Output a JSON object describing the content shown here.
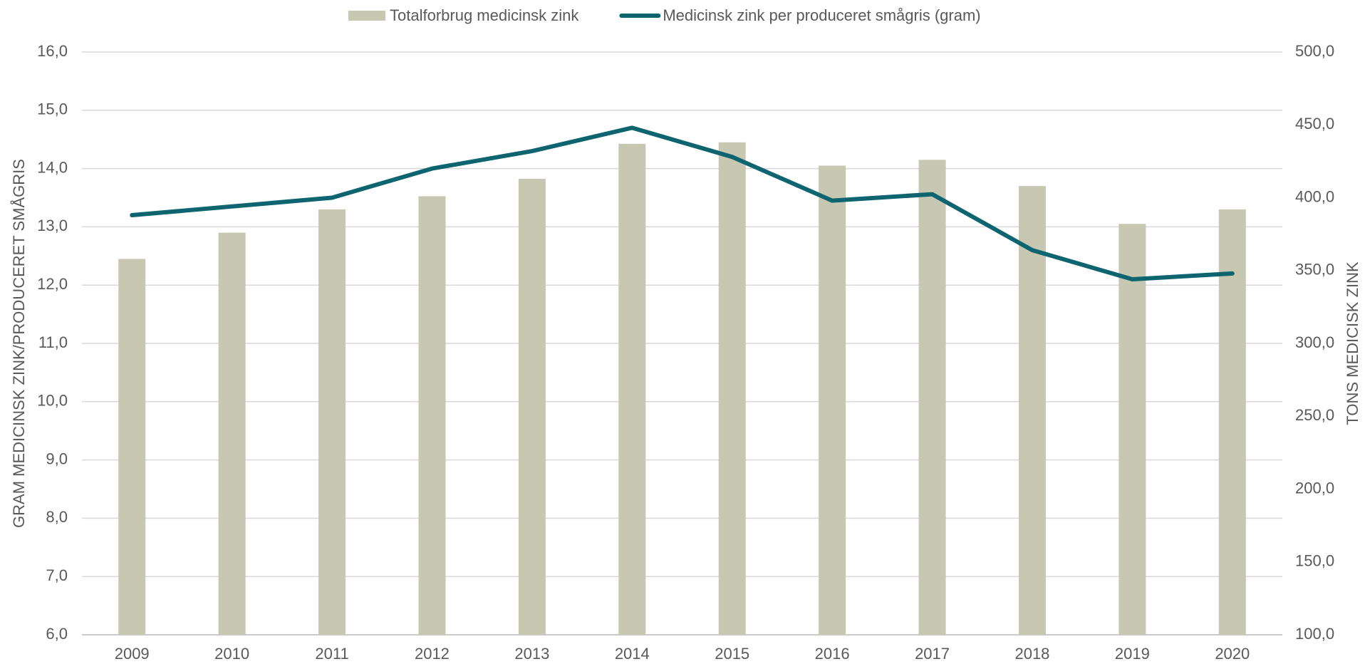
{
  "chart_data": {
    "type": "bar_line",
    "categories": [
      "2009",
      "2010",
      "2011",
      "2012",
      "2013",
      "2014",
      "2015",
      "2016",
      "2017",
      "2018",
      "2019",
      "2020"
    ],
    "y_label": "GRAM MEDICINSK ZINK/PRODUCERET SMÅGRIS",
    "y2_label": "TONS MEDICISK ZINK",
    "ylim": [
      6,
      16
    ],
    "yticks": [
      {
        "value": 6,
        "label": "6,0"
      },
      {
        "value": 7,
        "label": "7,0"
      },
      {
        "value": 8,
        "label": "8,0"
      },
      {
        "value": 9,
        "label": "9,0"
      },
      {
        "value": 10,
        "label": "10,0"
      },
      {
        "value": 11,
        "label": "11,0"
      },
      {
        "value": 12,
        "label": "12,0"
      },
      {
        "value": 13,
        "label": "13,0"
      },
      {
        "value": 14,
        "label": "14,0"
      },
      {
        "value": 15,
        "label": "15,0"
      },
      {
        "value": 16,
        "label": "16,0"
      }
    ],
    "y2lim": [
      100,
      500
    ],
    "y2ticks": [
      {
        "value": 100,
        "label": "100,0"
      },
      {
        "value": 150,
        "label": "150,0"
      },
      {
        "value": 200,
        "label": "200,0"
      },
      {
        "value": 250,
        "label": "250,0"
      },
      {
        "value": 300,
        "label": "300,0"
      },
      {
        "value": 350,
        "label": "350,0"
      },
      {
        "value": 400,
        "label": "400,0"
      },
      {
        "value": 450,
        "label": "450,0"
      },
      {
        "value": 500,
        "label": "500,0"
      }
    ],
    "grid": true,
    "series": [
      {
        "name": "Totalforbrug medicinsk zink",
        "type": "bar",
        "axis": "y2",
        "color": "#c8c7b1",
        "values": [
          358,
          376,
          392,
          401,
          413,
          437,
          438,
          422,
          426,
          408,
          382,
          392
        ]
      },
      {
        "name": "Medicinsk zink per produceret smågris (gram)",
        "type": "line",
        "color": "#0e6570",
        "values": [
          13.2,
          13.35,
          13.5,
          14.0,
          14.3,
          14.7,
          14.2,
          13.45,
          13.56,
          12.6,
          12.1,
          12.2
        ]
      }
    ]
  }
}
